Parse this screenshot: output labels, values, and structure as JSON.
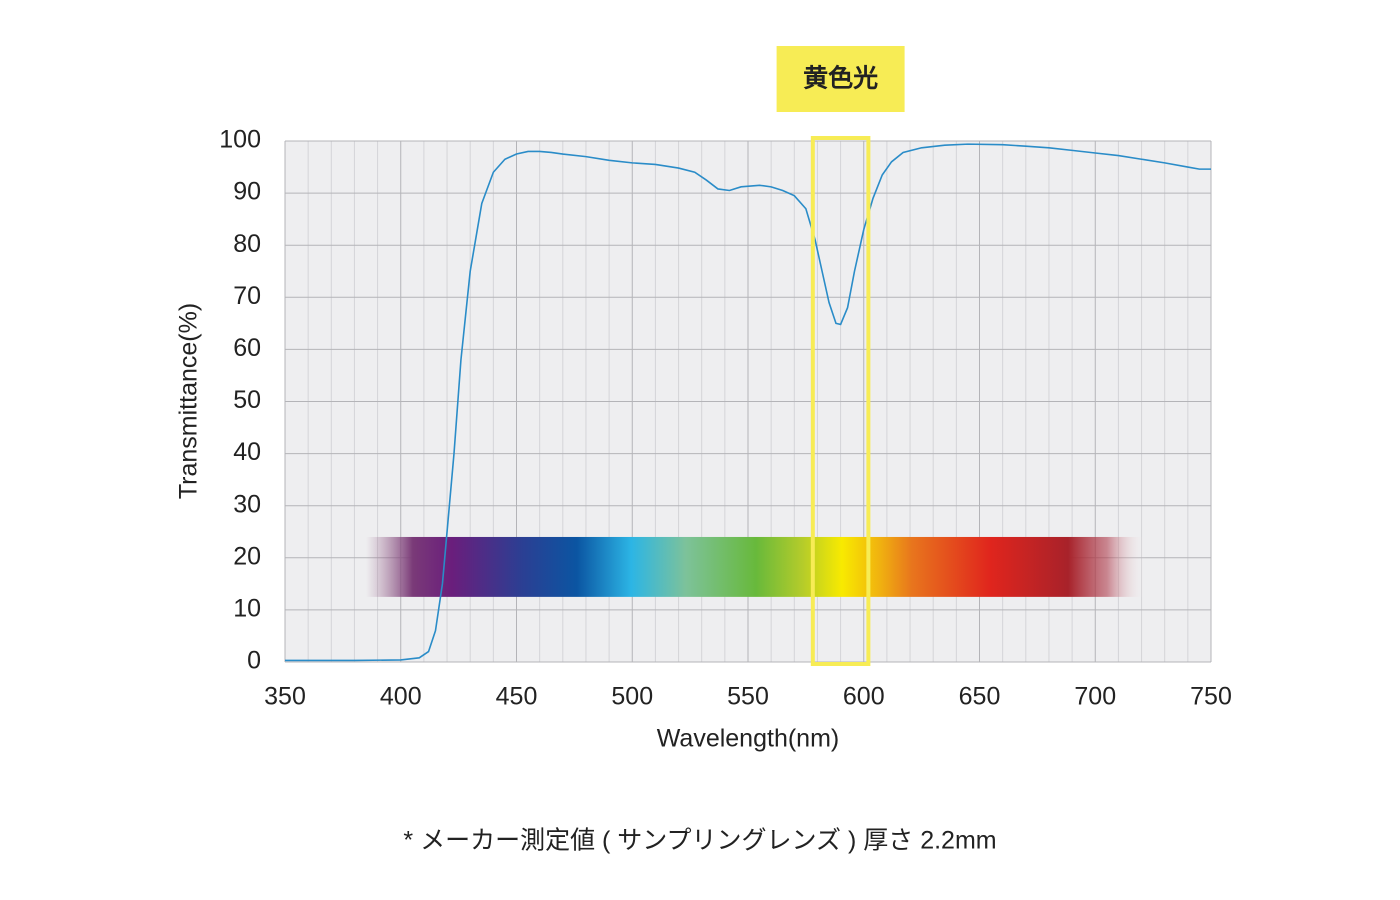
{
  "chart_data": {
    "type": "line",
    "xlabel": "Wavelength(nm)",
    "ylabel": "Transmittance(%)",
    "xlim": [
      350,
      750
    ],
    "ylim": [
      0,
      100
    ],
    "xticks": [
      350,
      400,
      450,
      500,
      550,
      600,
      650,
      700,
      750
    ],
    "yticks": [
      0,
      10,
      20,
      30,
      40,
      50,
      60,
      70,
      80,
      90,
      100
    ],
    "grid": true,
    "x": [
      350,
      380,
      400,
      408,
      412,
      415,
      418,
      420,
      423,
      426,
      430,
      435,
      440,
      445,
      450,
      455,
      460,
      465,
      470,
      480,
      490,
      500,
      510,
      520,
      527,
      532,
      537,
      542,
      547,
      555,
      560,
      565,
      570,
      575,
      579,
      582,
      585,
      588,
      590,
      593,
      596,
      600,
      604,
      608,
      612,
      617,
      625,
      635,
      645,
      660,
      670,
      680,
      690,
      700,
      710,
      720,
      730,
      740,
      745,
      750
    ],
    "series": [
      {
        "color": "#2a8cc8",
        "values": [
          0.3,
          0.3,
          0.4,
          0.8,
          2,
          6,
          15,
          25,
          40,
          58,
          75,
          88,
          94,
          96.5,
          97.5,
          98,
          98,
          97.8,
          97.5,
          97,
          96.3,
          95.8,
          95.5,
          94.8,
          94,
          92.5,
          90.8,
          90.5,
          91.2,
          91.5,
          91.2,
          90.5,
          89.5,
          87,
          81,
          75,
          69,
          65,
          64.8,
          68,
          75,
          83,
          89,
          93.5,
          96,
          97.8,
          98.7,
          99.2,
          99.4,
          99.3,
          99,
          98.7,
          98.2,
          97.7,
          97.2,
          96.5,
          95.8,
          95,
          94.6,
          94.6
        ]
      }
    ],
    "highlight": {
      "label": "黄色光",
      "xrange": [
        578,
        602
      ],
      "color": "#f7ec55"
    },
    "spectrum": {
      "xrange": [
        385,
        722
      ],
      "yrange": [
        12.5,
        24
      ]
    },
    "footnote": "* メーカー測定値 ( サンプリングレンズ ) 厚さ 2.2mm"
  }
}
